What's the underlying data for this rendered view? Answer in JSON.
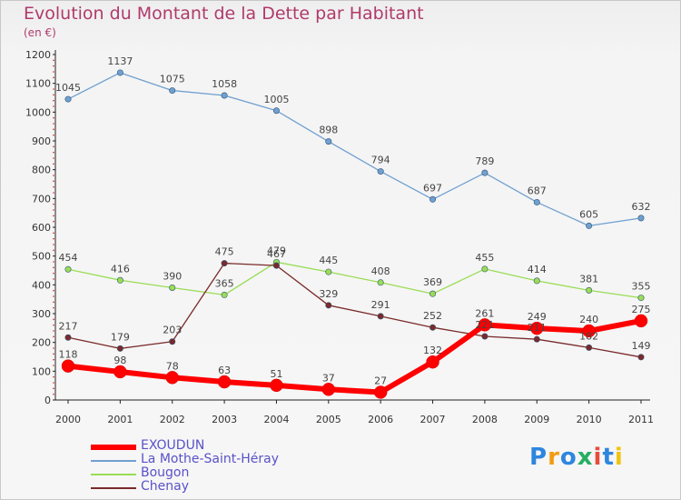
{
  "title": "Evolution du Montant de la Dette par Habitant",
  "subtitle": "(en €)",
  "logo": "Proxiti",
  "chart_data": {
    "type": "line",
    "title": "Evolution du Montant de la Dette par Habitant",
    "subtitle": "(en €)",
    "x": [
      "2000",
      "2001",
      "2002",
      "2003",
      "2004",
      "2005",
      "2006",
      "2007",
      "2008",
      "2009",
      "2010",
      "2011"
    ],
    "ylim": [
      0,
      1200
    ],
    "yticks": [
      0,
      100,
      200,
      300,
      400,
      500,
      600,
      700,
      800,
      900,
      1000,
      1100,
      1200
    ],
    "grid": false,
    "legend_position": "bottom-left",
    "series": [
      {
        "name": "EXOUDUN",
        "color": "#ff0000",
        "values": [
          118,
          98,
          78,
          63,
          51,
          37,
          27,
          132,
          261,
          249,
          240,
          275
        ]
      },
      {
        "name": "La Mothe-Saint-Héray",
        "color": "#6fa0d0",
        "values": [
          1045,
          1137,
          1075,
          1058,
          1005,
          898,
          794,
          697,
          789,
          687,
          605,
          632
        ]
      },
      {
        "name": "Bougon",
        "color": "#99dd55",
        "values": [
          454,
          416,
          390,
          365,
          479,
          445,
          408,
          369,
          455,
          414,
          381,
          355
        ]
      },
      {
        "name": "Chenay",
        "color": "#7a2a2a",
        "values": [
          217,
          179,
          203,
          475,
          467,
          329,
          291,
          252,
          221,
          211,
          182,
          149
        ]
      }
    ]
  }
}
